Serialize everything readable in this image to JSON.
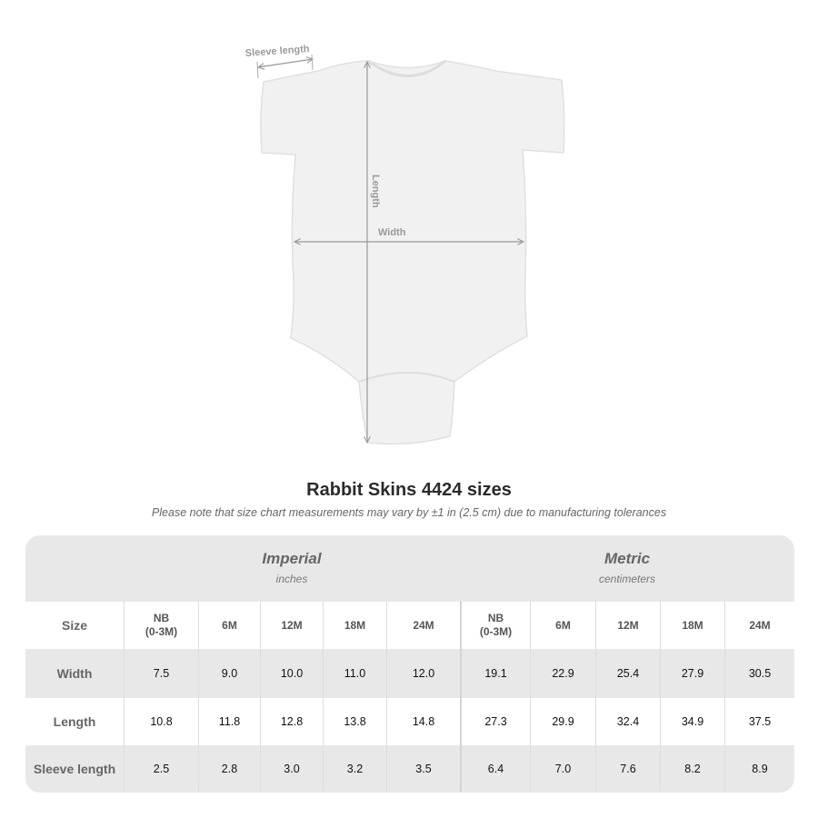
{
  "diagram": {
    "labels": {
      "sleeve": "Sleeve length",
      "length": "Length",
      "width": "Width"
    }
  },
  "title": "Rabbit Skins 4424 sizes",
  "note": "Please note that size chart measurements may vary by ±1 in (2.5 cm) due to manufacturing tolerances",
  "table": {
    "imperial": {
      "system": "Imperial",
      "unit": "inches"
    },
    "metric": {
      "system": "Metric",
      "unit": "centimeters"
    },
    "size_label": "Size",
    "sizes": [
      "NB\n(0-3M)",
      "6M",
      "12M",
      "18M",
      "24M"
    ],
    "rows": [
      {
        "label": "Width",
        "imperial": [
          "7.5",
          "9.0",
          "10.0",
          "11.0",
          "12.0"
        ],
        "metric": [
          "19.1",
          "22.9",
          "25.4",
          "27.9",
          "30.5"
        ]
      },
      {
        "label": "Length",
        "imperial": [
          "10.8",
          "11.8",
          "12.8",
          "13.8",
          "14.8"
        ],
        "metric": [
          "27.3",
          "29.9",
          "32.4",
          "34.9",
          "37.5"
        ]
      },
      {
        "label": "Sleeve length",
        "imperial": [
          "2.5",
          "2.8",
          "3.0",
          "3.2",
          "3.5"
        ],
        "metric": [
          "6.4",
          "7.0",
          "7.6",
          "8.2",
          "8.9"
        ]
      }
    ]
  }
}
